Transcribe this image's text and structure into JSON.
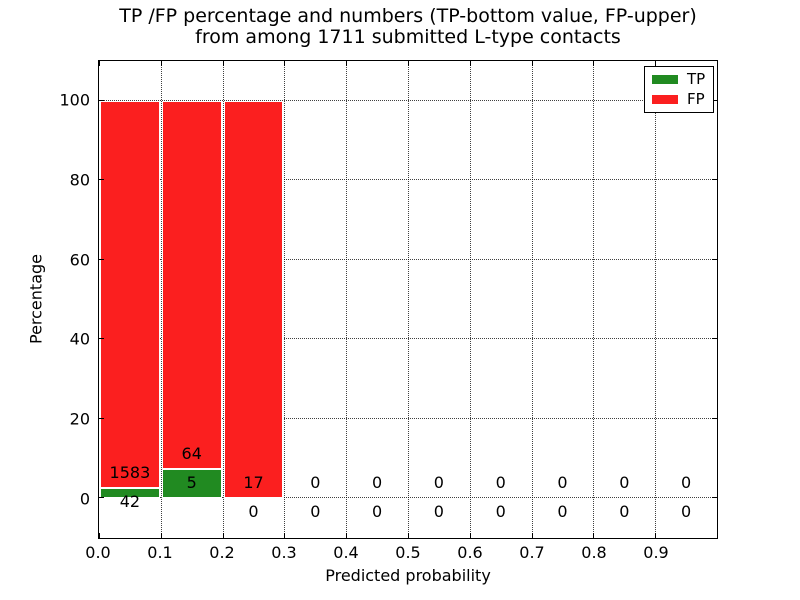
{
  "title": {
    "line1": "TP /FP percentage and numbers (TP-bottom value, FP-upper)",
    "line2": "from among 1711 submitted L-type contacts"
  },
  "axes": {
    "xlabel": "Predicted probability",
    "ylabel": "Percentage",
    "x_tick_labels": [
      "0.0",
      "0.1",
      "0.2",
      "0.3",
      "0.4",
      "0.5",
      "0.6",
      "0.7",
      "0.8",
      "0.9"
    ],
    "y_tick_labels": [
      "0",
      "20",
      "40",
      "60",
      "80",
      "100"
    ]
  },
  "legend": {
    "items": [
      {
        "label": "TP",
        "color": "#218a21"
      },
      {
        "label": "FP",
        "color": "#fb1f1f"
      }
    ]
  },
  "chart_data": {
    "type": "bar",
    "stacked": true,
    "title": "TP /FP percentage and numbers (TP-bottom value, FP-upper) from among 1711 submitted L-type contacts",
    "xlabel": "Predicted probability",
    "ylabel": "Percentage",
    "total_contacts": 1711,
    "bin_edges": [
      0.0,
      0.1,
      0.2,
      0.3,
      0.4,
      0.5,
      0.6,
      0.7,
      0.8,
      0.9,
      1.0
    ],
    "categories": [
      "0.0-0.1",
      "0.1-0.2",
      "0.2-0.3",
      "0.3-0.4",
      "0.4-0.5",
      "0.5-0.6",
      "0.6-0.7",
      "0.7-0.8",
      "0.8-0.9",
      "0.9-1.0"
    ],
    "series": [
      {
        "name": "TP",
        "color": "#218a21",
        "counts": [
          42,
          5,
          0,
          0,
          0,
          0,
          0,
          0,
          0,
          0
        ],
        "percent": [
          2.58,
          7.25,
          0,
          0,
          0,
          0,
          0,
          0,
          0,
          0
        ]
      },
      {
        "name": "FP",
        "color": "#fb1f1f",
        "counts": [
          1583,
          64,
          17,
          0,
          0,
          0,
          0,
          0,
          0,
          0
        ],
        "percent": [
          97.42,
          92.75,
          100,
          0,
          0,
          0,
          0,
          0,
          0,
          0
        ]
      }
    ],
    "xticks": [
      0.0,
      0.1,
      0.2,
      0.3,
      0.4,
      0.5,
      0.6,
      0.7,
      0.8,
      0.9
    ],
    "yticks": [
      0,
      20,
      40,
      60,
      80,
      100
    ],
    "xlim": [
      0,
      1
    ],
    "ylim": [
      -10,
      110
    ],
    "grid": "dotted both axes",
    "legend_position": "upper right",
    "annotation_note": "FP count printed above TP/FP boundary, TP count printed below it"
  }
}
